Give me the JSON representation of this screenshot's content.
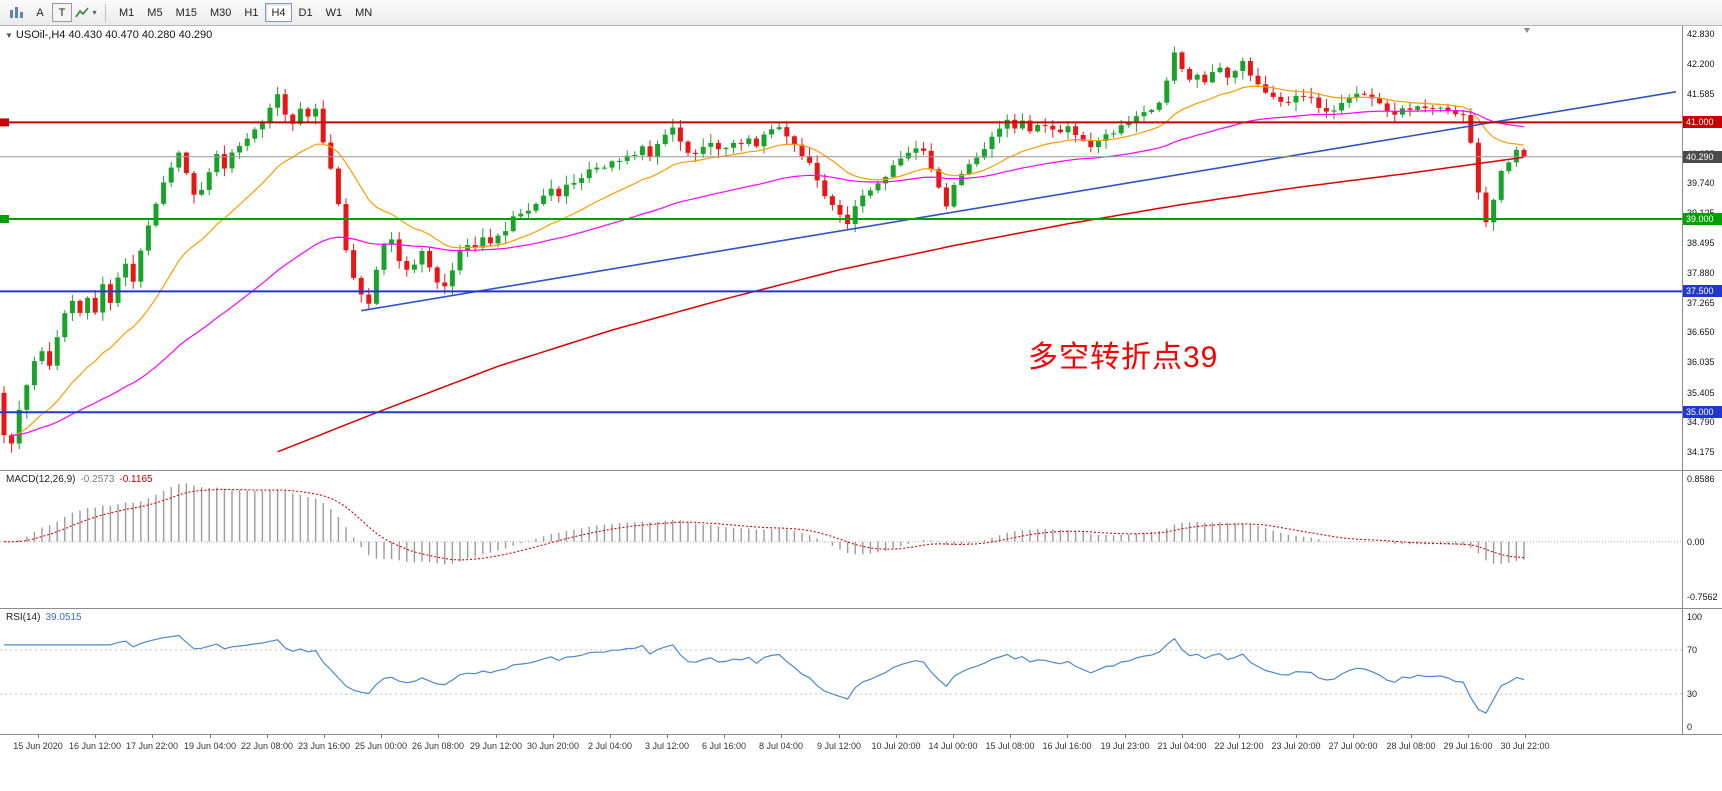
{
  "toolbar": {
    "cursor_label": "A",
    "text_label": "T",
    "collapse_icon": "▼",
    "indicator_caret": "▾",
    "timeframes": [
      "M1",
      "M5",
      "M15",
      "M30",
      "H1",
      "H4",
      "D1",
      "W1",
      "MN"
    ],
    "active_timeframe": "H4"
  },
  "main_chart": {
    "title": "USOil-,H4 40.430 40.470 40.280 40.290",
    "annotation": "多空转折点39",
    "annotation_color": "#fb0000",
    "y_ticks": [
      42.83,
      42.2,
      41.585,
      40.97,
      40.355,
      39.74,
      39.125,
      38.495,
      37.88,
      37.265,
      36.65,
      36.035,
      35.405,
      34.79,
      34.175
    ],
    "levels": [
      {
        "name": "resistance-41000",
        "price": 41.0,
        "label": "41.000",
        "color": "#c80000",
        "width": 2,
        "marker": true
      },
      {
        "name": "bid-price",
        "price": 40.29,
        "label": "40.290",
        "color": "#4a4a4a",
        "line_color": "#999999",
        "width": 1
      },
      {
        "name": "support-39000",
        "price": 39.0,
        "label": "39.000",
        "color": "#00a000",
        "width": 2,
        "marker": true
      },
      {
        "name": "level-37500",
        "price": 37.5,
        "label": "37.500",
        "color": "#2038d0",
        "width": 2
      },
      {
        "name": "level-35000",
        "price": 35.0,
        "label": "35.000",
        "color": "#2038d0",
        "width": 2
      }
    ]
  },
  "macd_panel": {
    "name_label": "MACD(12,26,9)",
    "value_main": "-0.2573",
    "value_signal": "-0.1165",
    "y_ticks": [
      {
        "v": 0.8586,
        "t": "0.8586"
      },
      {
        "v": 0,
        "t": "0.00"
      },
      {
        "v": -0.7562,
        "t": "-0.7562"
      }
    ]
  },
  "rsi_panel": {
    "name_label": "RSI(14)",
    "value": "39.0515",
    "y_ticks": [
      {
        "v": 100,
        "t": "100"
      },
      {
        "v": 70,
        "t": "70"
      },
      {
        "v": 30,
        "t": "30"
      },
      {
        "v": 0,
        "t": "0"
      }
    ],
    "levels": [
      70,
      30
    ]
  },
  "chart_data": {
    "type": "candlestick",
    "symbol": "USOil",
    "timeframe": "H4",
    "bars": 201,
    "price_range": [
      34.175,
      42.83
    ],
    "last_ohlc": {
      "open": 40.43,
      "high": 40.47,
      "low": 40.28,
      "close": 40.29
    },
    "colors": {
      "up": "#19a32b",
      "down": "#ea1515"
    },
    "price_path_keypoints": [
      [
        0,
        35.4
      ],
      [
        1,
        34.55
      ],
      [
        2,
        34.3
      ],
      [
        3,
        35.0
      ],
      [
        4,
        35.6
      ],
      [
        5,
        36.1
      ],
      [
        6,
        36.3
      ],
      [
        7,
        36.0
      ],
      [
        8,
        36.6
      ],
      [
        9,
        37.0
      ],
      [
        10,
        37.3
      ],
      [
        11,
        37.0
      ],
      [
        12,
        37.4
      ],
      [
        13,
        37.1
      ],
      [
        14,
        37.6
      ],
      [
        15,
        37.3
      ],
      [
        16,
        37.8
      ],
      [
        17,
        38.1
      ],
      [
        18,
        37.7
      ],
      [
        19,
        38.3
      ],
      [
        20,
        38.9
      ],
      [
        21,
        39.3
      ],
      [
        22,
        39.8
      ],
      [
        23,
        40.1
      ],
      [
        24,
        40.35
      ],
      [
        25,
        39.9
      ],
      [
        26,
        39.5
      ],
      [
        27,
        39.65
      ],
      [
        28,
        40.0
      ],
      [
        29,
        40.3
      ],
      [
        30,
        40.1
      ],
      [
        31,
        40.35
      ],
      [
        33,
        40.7
      ],
      [
        35,
        41.0
      ],
      [
        36,
        41.3
      ],
      [
        37,
        41.55
      ],
      [
        38,
        41.2
      ],
      [
        39,
        41.0
      ],
      [
        40,
        41.3
      ],
      [
        41,
        41.15
      ],
      [
        42,
        41.25
      ],
      [
        43,
        40.6
      ],
      [
        44,
        40.0
      ],
      [
        45,
        39.3
      ],
      [
        46,
        38.4
      ],
      [
        47,
        37.8
      ],
      [
        48,
        37.4
      ],
      [
        49,
        37.2
      ],
      [
        50,
        38.0
      ],
      [
        51,
        38.45
      ],
      [
        52,
        38.55
      ],
      [
        53,
        38.1
      ],
      [
        54,
        37.9
      ],
      [
        55,
        38.05
      ],
      [
        56,
        38.3
      ],
      [
        57,
        38.0
      ],
      [
        58,
        37.7
      ],
      [
        59,
        37.6
      ],
      [
        60,
        37.9
      ],
      [
        61,
        38.3
      ],
      [
        62,
        38.5
      ],
      [
        63,
        38.4
      ],
      [
        64,
        38.6
      ],
      [
        65,
        38.5
      ],
      [
        66,
        38.7
      ],
      [
        67,
        38.8
      ],
      [
        68,
        39.0
      ],
      [
        70,
        39.2
      ],
      [
        72,
        39.45
      ],
      [
        73,
        39.6
      ],
      [
        74,
        39.5
      ],
      [
        75,
        39.7
      ],
      [
        76,
        39.8
      ],
      [
        78,
        40.0
      ],
      [
        80,
        40.1
      ],
      [
        82,
        40.25
      ],
      [
        84,
        40.3
      ],
      [
        85,
        40.45
      ],
      [
        86,
        40.3
      ],
      [
        87,
        40.5
      ],
      [
        88,
        40.7
      ],
      [
        89,
        40.85
      ],
      [
        90,
        40.6
      ],
      [
        91,
        40.4
      ],
      [
        92,
        40.3
      ],
      [
        93,
        40.45
      ],
      [
        94,
        40.55
      ],
      [
        95,
        40.4
      ],
      [
        96,
        40.5
      ],
      [
        97,
        40.6
      ],
      [
        98,
        40.5
      ],
      [
        99,
        40.65
      ],
      [
        100,
        40.55
      ],
      [
        101,
        40.7
      ],
      [
        102,
        40.85
      ],
      [
        103,
        40.95
      ],
      [
        104,
        40.7
      ],
      [
        105,
        40.5
      ],
      [
        106,
        40.35
      ],
      [
        107,
        40.2
      ],
      [
        108,
        39.8
      ],
      [
        109,
        39.5
      ],
      [
        110,
        39.3
      ],
      [
        111,
        39.1
      ],
      [
        112,
        38.95
      ],
      [
        113,
        39.3
      ],
      [
        114,
        39.5
      ],
      [
        115,
        39.6
      ],
      [
        116,
        39.7
      ],
      [
        117,
        39.9
      ],
      [
        118,
        40.1
      ],
      [
        119,
        40.25
      ],
      [
        120,
        40.4
      ],
      [
        121,
        40.5
      ],
      [
        122,
        40.45
      ],
      [
        123,
        40.0
      ],
      [
        124,
        39.6
      ],
      [
        125,
        39.3
      ],
      [
        126,
        39.7
      ],
      [
        127,
        39.9
      ],
      [
        128,
        40.1
      ],
      [
        129,
        40.25
      ],
      [
        130,
        40.5
      ],
      [
        131,
        40.7
      ],
      [
        132,
        40.9
      ],
      [
        133,
        41.05
      ],
      [
        134,
        40.9
      ],
      [
        135,
        41.0
      ],
      [
        136,
        40.85
      ],
      [
        137,
        41.0
      ],
      [
        138,
        40.95
      ],
      [
        139,
        40.9
      ],
      [
        140,
        40.8
      ],
      [
        141,
        40.9
      ],
      [
        142,
        40.7
      ],
      [
        143,
        40.6
      ],
      [
        144,
        40.5
      ],
      [
        145,
        40.6
      ],
      [
        146,
        40.7
      ],
      [
        147,
        40.8
      ],
      [
        148,
        40.9
      ],
      [
        149,
        41.0
      ],
      [
        150,
        41.1
      ],
      [
        151,
        41.2
      ],
      [
        152,
        41.3
      ],
      [
        153,
        41.45
      ],
      [
        154,
        41.9
      ],
      [
        155,
        42.4
      ],
      [
        156,
        42.1
      ],
      [
        157,
        41.9
      ],
      [
        158,
        42.0
      ],
      [
        159,
        41.85
      ],
      [
        160,
        42.0
      ],
      [
        161,
        42.1
      ],
      [
        162,
        41.95
      ],
      [
        163,
        42.1
      ],
      [
        164,
        42.25
      ],
      [
        165,
        42.0
      ],
      [
        166,
        41.8
      ],
      [
        167,
        41.6
      ],
      [
        168,
        41.5
      ],
      [
        169,
        41.4
      ],
      [
        170,
        41.45
      ],
      [
        171,
        41.5
      ],
      [
        172,
        41.55
      ],
      [
        173,
        41.5
      ],
      [
        174,
        41.35
      ],
      [
        175,
        41.25
      ],
      [
        176,
        41.2
      ],
      [
        177,
        41.35
      ],
      [
        178,
        41.5
      ],
      [
        179,
        41.55
      ],
      [
        180,
        41.6
      ],
      [
        181,
        41.55
      ],
      [
        182,
        41.35
      ],
      [
        183,
        41.2
      ],
      [
        184,
        41.15
      ],
      [
        185,
        41.25
      ],
      [
        186,
        41.3
      ],
      [
        187,
        41.35
      ],
      [
        188,
        41.3
      ],
      [
        189,
        41.25
      ],
      [
        190,
        41.3
      ],
      [
        191,
        41.25
      ],
      [
        192,
        41.2
      ],
      [
        193,
        41.15
      ],
      [
        194,
        40.6
      ],
      [
        195,
        39.6
      ],
      [
        196,
        38.95
      ],
      [
        197,
        39.4
      ],
      [
        198,
        40.0
      ],
      [
        199,
        40.2
      ],
      [
        200,
        39.85
      ],
      [
        201,
        40.29
      ]
    ],
    "moving_averages": [
      {
        "name": "ma-fast",
        "color": "#ff9c00",
        "period": 18,
        "source": "ema-of-close"
      },
      {
        "name": "ma-mid",
        "color": "#ff00ff",
        "period": 55,
        "source": "ema-of-close"
      },
      {
        "name": "ma-slow",
        "color": "#e00000",
        "keypoints": [
          [
            36,
            34.18
          ],
          [
            50,
            35.05
          ],
          [
            65,
            35.95
          ],
          [
            80,
            36.7
          ],
          [
            95,
            37.35
          ],
          [
            110,
            37.95
          ],
          [
            125,
            38.45
          ],
          [
            140,
            38.9
          ],
          [
            155,
            39.3
          ],
          [
            170,
            39.65
          ],
          [
            185,
            39.95
          ],
          [
            201,
            40.3
          ]
        ]
      }
    ],
    "trendline": {
      "color": "#2c52cc",
      "start": [
        47,
        37.1
      ],
      "slope_per_bar": 0.0262,
      "end_index": 220
    },
    "macd": {
      "fast": 12,
      "slow": 26,
      "signal": 9,
      "display_max": 0.8586,
      "display_min": -0.7562,
      "histogram_color": "#9b9b9b",
      "signal_color": "#dd0000"
    },
    "rsi": {
      "period": 14,
      "color": "#4d89cc",
      "levels": [
        70,
        30
      ]
    },
    "x_labels": [
      "15 Jun 2020",
      "16 Jun 12:00",
      "17 Jun 22:00",
      "19 Jun 04:00",
      "22 Jun 08:00",
      "23 Jun 16:00",
      "25 Jun 00:00",
      "26 Jun 08:00",
      "29 Jun 12:00",
      "30 Jun 20:00",
      "2 Jul 04:00",
      "3 Jul 12:00",
      "6 Jul 16:00",
      "8 Jul 04:00",
      "9 Jul 12:00",
      "10 Jul 20:00",
      "14 Jul 00:00",
      "15 Jul 08:00",
      "16 Jul 16:00",
      "19 Jul 23:00",
      "21 Jul 04:00",
      "22 Jul 12:00",
      "23 Jul 20:00",
      "27 Jul 00:00",
      "28 Jul 08:00",
      "29 Jul 16:00",
      "30 Jul 22:00"
    ]
  }
}
